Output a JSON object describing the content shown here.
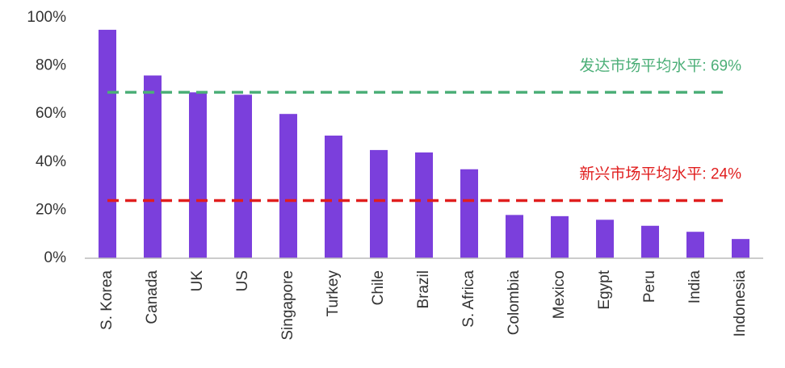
{
  "chart_data": {
    "type": "bar",
    "categories": [
      "S. Korea",
      "Canada",
      "UK",
      "US",
      "Singapore",
      "Turkey",
      "Chile",
      "Brazil",
      "S. Africa",
      "Colombia",
      "Mexico",
      "Egypt",
      "Peru",
      "India",
      "Indonesia"
    ],
    "values": [
      95,
      76,
      69,
      68,
      60,
      51,
      45,
      44,
      37,
      18,
      17.5,
      16,
      13.5,
      11,
      8
    ],
    "color": "#7b3fdc",
    "ylim": [
      0,
      100
    ],
    "yticks": [
      {
        "value": 0,
        "label": "0%"
      },
      {
        "value": 20,
        "label": "20%"
      },
      {
        "value": 40,
        "label": "40%"
      },
      {
        "value": 60,
        "label": "60%"
      },
      {
        "value": 80,
        "label": "80%"
      },
      {
        "value": 100,
        "label": "100%"
      }
    ],
    "grid": false,
    "reference_lines": [
      {
        "value": 69,
        "label": "发达市场平均水平: 69%",
        "color": "#4caf78"
      },
      {
        "value": 24,
        "label": "新兴市场平均水平: 24%",
        "color": "#e01e1e"
      }
    ]
  }
}
